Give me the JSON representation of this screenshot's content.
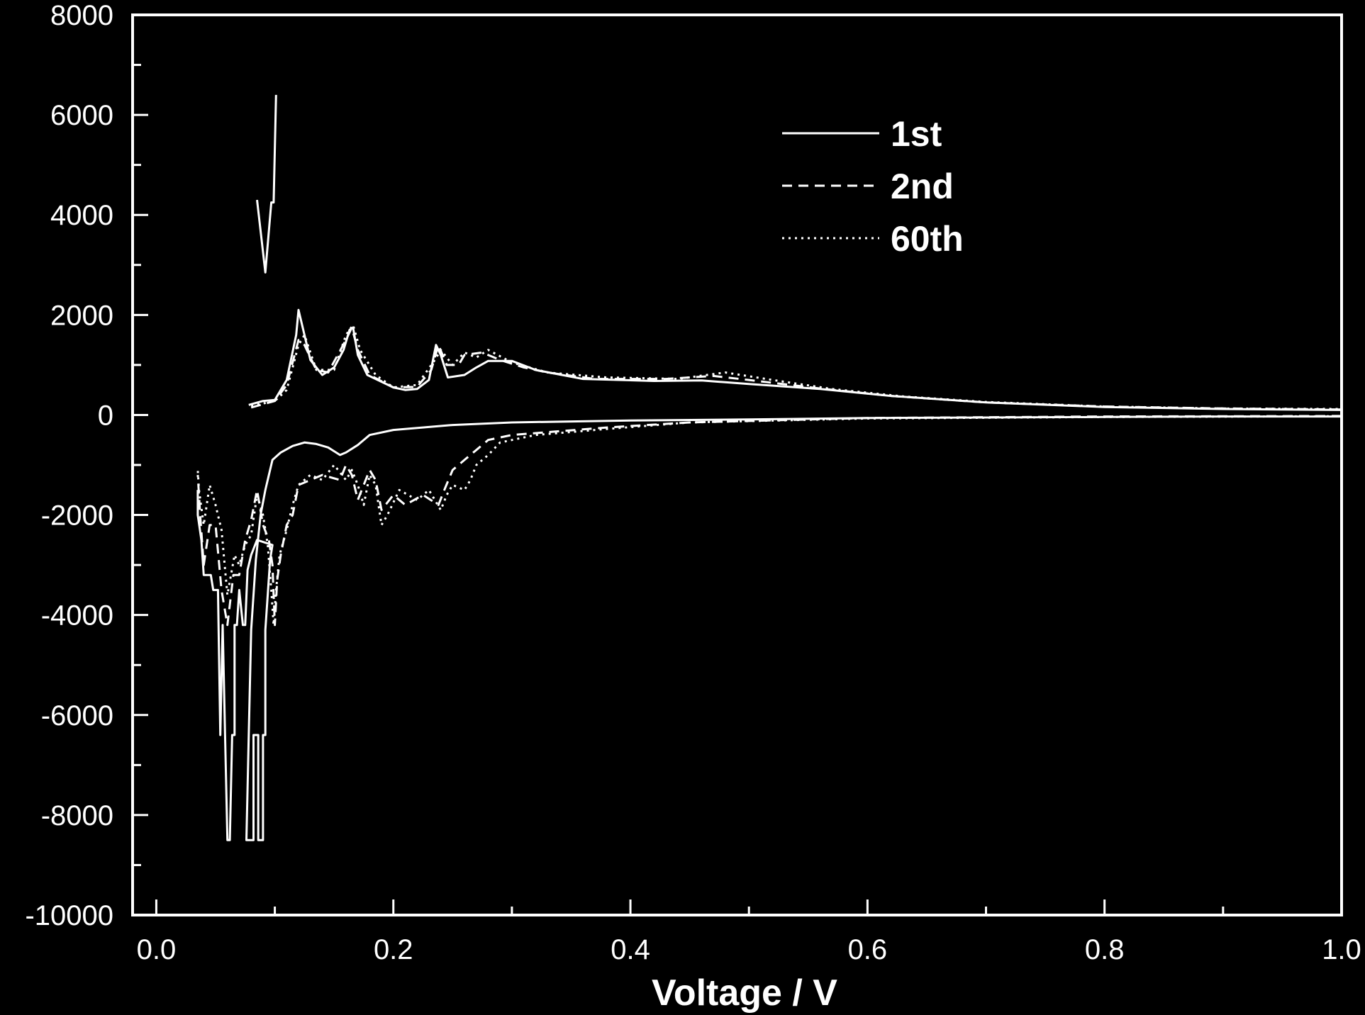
{
  "chart_data": {
    "type": "line",
    "title": "",
    "xlabel": "Voltage / V",
    "ylabel": "",
    "xlim": [
      -0.02,
      1.0
    ],
    "ylim": [
      -10000,
      8000
    ],
    "x_ticks": [
      0.0,
      0.2,
      0.4,
      0.6,
      0.8,
      1.0
    ],
    "x_tick_labels": [
      "0.0",
      "0.2",
      "0.4",
      "0.6",
      "0.8",
      "1.0"
    ],
    "y_ticks": [
      -10000,
      -8000,
      -6000,
      -4000,
      -2000,
      0,
      2000,
      4000,
      6000,
      8000
    ],
    "y_tick_labels": [
      "-10000",
      "-8000",
      "-6000",
      "-4000",
      "-2000",
      "0",
      "2000",
      "4000",
      "6000",
      "8000"
    ],
    "grid": false,
    "legend_position": "top-right",
    "colors": {
      "background": "#000000",
      "foreground": "#ffffff"
    },
    "series": [
      {
        "name": "1st",
        "style": "solid",
        "segments": [
          [
            [
              0.085,
              4300
            ],
            [
              0.092,
              2850
            ],
            [
              0.097,
              4250
            ],
            [
              0.099,
              4250
            ],
            [
              0.101,
              6400
            ]
          ],
          [
            [
              0.078,
              200
            ],
            [
              0.09,
              280
            ],
            [
              0.1,
              300
            ],
            [
              0.11,
              700
            ],
            [
              0.118,
              1600
            ],
            [
              0.12,
              2100
            ],
            [
              0.124,
              1700
            ],
            [
              0.13,
              1100
            ],
            [
              0.14,
              800
            ],
            [
              0.15,
              950
            ],
            [
              0.158,
              1300
            ],
            [
              0.163,
              1700
            ],
            [
              0.166,
              1750
            ],
            [
              0.17,
              1200
            ],
            [
              0.178,
              800
            ],
            [
              0.2,
              550
            ],
            [
              0.21,
              500
            ],
            [
              0.22,
              520
            ],
            [
              0.23,
              700
            ],
            [
              0.236,
              1400
            ],
            [
              0.24,
              1200
            ],
            [
              0.246,
              750
            ],
            [
              0.26,
              800
            ],
            [
              0.27,
              950
            ],
            [
              0.28,
              1080
            ],
            [
              0.3,
              1080
            ],
            [
              0.32,
              900
            ],
            [
              0.36,
              720
            ],
            [
              0.42,
              680
            ],
            [
              0.46,
              690
            ],
            [
              0.5,
              620
            ],
            [
              0.56,
              520
            ],
            [
              0.62,
              380
            ],
            [
              0.7,
              250
            ],
            [
              0.8,
              160
            ],
            [
              0.9,
              120
            ],
            [
              1.0,
              100
            ]
          ],
          [
            [
              1.0,
              -30
            ],
            [
              0.9,
              -30
            ],
            [
              0.8,
              -40
            ],
            [
              0.6,
              -60
            ],
            [
              0.5,
              -90
            ],
            [
              0.4,
              -110
            ],
            [
              0.3,
              -150
            ],
            [
              0.25,
              -200
            ],
            [
              0.2,
              -300
            ],
            [
              0.18,
              -400
            ],
            [
              0.17,
              -600
            ],
            [
              0.16,
              -750
            ],
            [
              0.155,
              -800
            ],
            [
              0.145,
              -650
            ],
            [
              0.135,
              -580
            ],
            [
              0.125,
              -550
            ],
            [
              0.115,
              -620
            ],
            [
              0.105,
              -750
            ],
            [
              0.098,
              -900
            ],
            [
              0.095,
              -1200
            ],
            [
              0.092,
              -1500
            ],
            [
              0.088,
              -2000
            ],
            [
              0.084,
              -2900
            ],
            [
              0.08,
              -4300
            ],
            [
              0.078,
              -6400
            ],
            [
              0.076,
              -8500
            ],
            [
              0.082,
              -8500
            ],
            [
              0.082,
              -6400
            ],
            [
              0.086,
              -6400
            ],
            [
              0.086,
              -8500
            ],
            [
              0.09,
              -8500
            ],
            [
              0.09,
              -6400
            ],
            [
              0.092,
              -6400
            ],
            [
              0.092,
              -4300
            ],
            [
              0.096,
              -2900
            ],
            [
              0.098,
              -2600
            ],
            [
              0.085,
              -2500
            ],
            [
              0.08,
              -2800
            ],
            [
              0.077,
              -3100
            ],
            [
              0.075,
              -4200
            ],
            [
              0.073,
              -4200
            ],
            [
              0.07,
              -3500
            ],
            [
              0.068,
              -4200
            ],
            [
              0.066,
              -4200
            ],
            [
              0.066,
              -6400
            ],
            [
              0.064,
              -6400
            ],
            [
              0.062,
              -8500
            ],
            [
              0.06,
              -8500
            ],
            [
              0.058,
              -6400
            ],
            [
              0.056,
              -4200
            ],
            [
              0.054,
              -6400
            ],
            [
              0.052,
              -3500
            ],
            [
              0.048,
              -3500
            ],
            [
              0.046,
              -3200
            ],
            [
              0.04,
              -3200
            ],
            [
              0.038,
              -2500
            ],
            [
              0.035,
              -2000
            ],
            [
              0.035,
              -1500
            ]
          ]
        ]
      },
      {
        "name": "2nd",
        "style": "dashed",
        "segments": [
          [
            [
              0.08,
              150
            ],
            [
              0.1,
              280
            ],
            [
              0.11,
              600
            ],
            [
              0.12,
              1500
            ],
            [
              0.125,
              1400
            ],
            [
              0.135,
              900
            ],
            [
              0.145,
              850
            ],
            [
              0.16,
              1500
            ],
            [
              0.165,
              1750
            ],
            [
              0.17,
              1300
            ],
            [
              0.18,
              800
            ],
            [
              0.2,
              550
            ],
            [
              0.22,
              560
            ],
            [
              0.232,
              900
            ],
            [
              0.238,
              1400
            ],
            [
              0.245,
              1000
            ],
            [
              0.255,
              1000
            ],
            [
              0.26,
              1200
            ],
            [
              0.275,
              1250
            ],
            [
              0.29,
              1100
            ],
            [
              0.31,
              950
            ],
            [
              0.33,
              850
            ],
            [
              0.37,
              720
            ],
            [
              0.43,
              720
            ],
            [
              0.47,
              780
            ],
            [
              0.5,
              700
            ],
            [
              0.56,
              530
            ],
            [
              0.62,
              380
            ],
            [
              0.7,
              250
            ],
            [
              0.8,
              170
            ],
            [
              0.9,
              130
            ],
            [
              1.0,
              110
            ]
          ],
          [
            [
              1.0,
              -20
            ],
            [
              0.8,
              -30
            ],
            [
              0.6,
              -60
            ],
            [
              0.45,
              -150
            ],
            [
              0.38,
              -250
            ],
            [
              0.3,
              -400
            ],
            [
              0.28,
              -500
            ],
            [
              0.27,
              -700
            ],
            [
              0.26,
              -900
            ],
            [
              0.25,
              -1100
            ],
            [
              0.243,
              -1500
            ],
            [
              0.238,
              -1800
            ],
            [
              0.225,
              -1600
            ],
            [
              0.21,
              -1800
            ],
            [
              0.2,
              -1600
            ],
            [
              0.19,
              -1900
            ],
            [
              0.185,
              -1300
            ],
            [
              0.18,
              -1100
            ],
            [
              0.17,
              -1700
            ],
            [
              0.165,
              -1200
            ],
            [
              0.16,
              -1000
            ],
            [
              0.155,
              -1300
            ],
            [
              0.14,
              -1200
            ],
            [
              0.13,
              -1300
            ],
            [
              0.12,
              -1400
            ],
            [
              0.115,
              -2000
            ],
            [
              0.11,
              -2200
            ],
            [
              0.105,
              -2800
            ],
            [
              0.102,
              -3300
            ],
            [
              0.1,
              -4200
            ],
            [
              0.098,
              -3000
            ],
            [
              0.095,
              -2500
            ],
            [
              0.09,
              -2200
            ],
            [
              0.085,
              -1500
            ],
            [
              0.08,
              -2100
            ],
            [
              0.075,
              -2500
            ],
            [
              0.07,
              -3200
            ],
            [
              0.065,
              -3200
            ],
            [
              0.06,
              -4200
            ],
            [
              0.055,
              -3500
            ],
            [
              0.05,
              -2200
            ],
            [
              0.045,
              -2200
            ],
            [
              0.04,
              -3000
            ],
            [
              0.037,
              -2000
            ],
            [
              0.035,
              -1200
            ]
          ]
        ]
      },
      {
        "name": "60th",
        "style": "dotted",
        "segments": [
          [
            [
              0.08,
              180
            ],
            [
              0.1,
              280
            ],
            [
              0.11,
              500
            ],
            [
              0.12,
              1400
            ],
            [
              0.125,
              1600
            ],
            [
              0.135,
              900
            ],
            [
              0.15,
              900
            ],
            [
              0.16,
              1600
            ],
            [
              0.166,
              1800
            ],
            [
              0.172,
              1300
            ],
            [
              0.185,
              800
            ],
            [
              0.2,
              550
            ],
            [
              0.22,
              600
            ],
            [
              0.235,
              1100
            ],
            [
              0.24,
              1300
            ],
            [
              0.25,
              1000
            ],
            [
              0.26,
              1250
            ],
            [
              0.27,
              1150
            ],
            [
              0.28,
              1300
            ],
            [
              0.3,
              1050
            ],
            [
              0.33,
              850
            ],
            [
              0.38,
              750
            ],
            [
              0.44,
              720
            ],
            [
              0.48,
              850
            ],
            [
              0.52,
              700
            ],
            [
              0.57,
              520
            ],
            [
              0.63,
              370
            ],
            [
              0.7,
              260
            ],
            [
              0.8,
              170
            ],
            [
              0.9,
              130
            ],
            [
              1.0,
              120
            ]
          ],
          [
            [
              1.0,
              -25
            ],
            [
              0.8,
              -40
            ],
            [
              0.6,
              -70
            ],
            [
              0.45,
              -150
            ],
            [
              0.38,
              -280
            ],
            [
              0.32,
              -400
            ],
            [
              0.29,
              -550
            ],
            [
              0.28,
              -800
            ],
            [
              0.27,
              -1000
            ],
            [
              0.265,
              -1300
            ],
            [
              0.26,
              -1500
            ],
            [
              0.25,
              -1400
            ],
            [
              0.245,
              -1600
            ],
            [
              0.24,
              -1900
            ],
            [
              0.23,
              -1500
            ],
            [
              0.22,
              -1700
            ],
            [
              0.205,
              -1500
            ],
            [
              0.195,
              -2000
            ],
            [
              0.19,
              -2200
            ],
            [
              0.185,
              -1400
            ],
            [
              0.18,
              -1200
            ],
            [
              0.175,
              -1800
            ],
            [
              0.17,
              -1400
            ],
            [
              0.165,
              -1100
            ],
            [
              0.16,
              -1300
            ],
            [
              0.15,
              -1000
            ],
            [
              0.14,
              -1300
            ],
            [
              0.13,
              -1200
            ],
            [
              0.12,
              -1400
            ],
            [
              0.115,
              -1800
            ],
            [
              0.11,
              -2300
            ],
            [
              0.104,
              -2800
            ],
            [
              0.101,
              -3500
            ],
            [
              0.099,
              -4200
            ],
            [
              0.097,
              -3500
            ],
            [
              0.094,
              -2600
            ],
            [
              0.09,
              -2000
            ],
            [
              0.085,
              -1600
            ],
            [
              0.08,
              -2400
            ],
            [
              0.075,
              -2600
            ],
            [
              0.07,
              -3000
            ],
            [
              0.066,
              -2800
            ],
            [
              0.06,
              -3600
            ],
            [
              0.055,
              -2300
            ],
            [
              0.05,
              -1800
            ],
            [
              0.045,
              -1400
            ],
            [
              0.04,
              -2200
            ],
            [
              0.036,
              -1500
            ],
            [
              0.035,
              -1100
            ]
          ]
        ]
      }
    ]
  }
}
